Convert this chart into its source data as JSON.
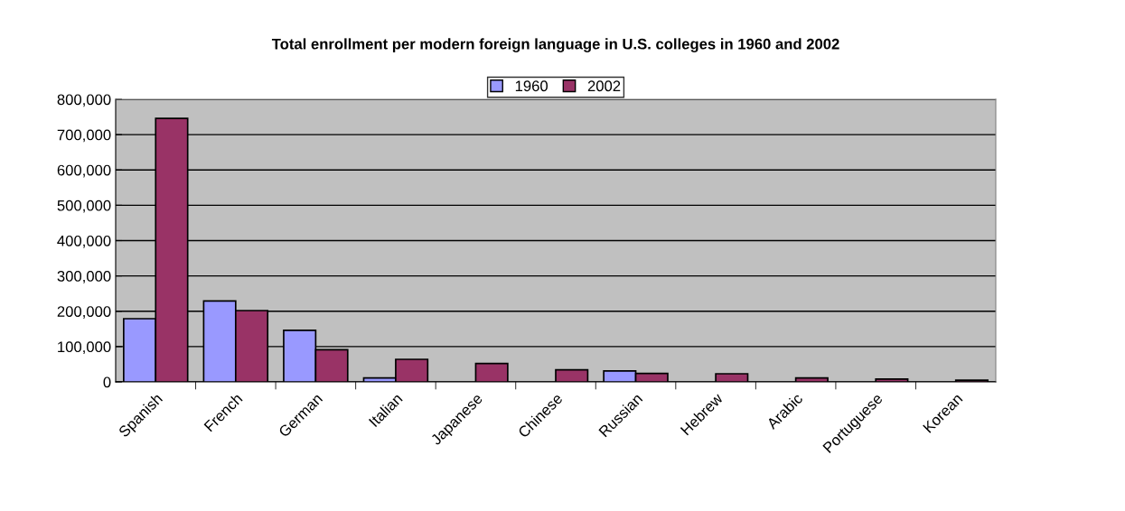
{
  "chart_data": {
    "type": "bar",
    "title": "Total enrollment per modern foreign language in U.S. colleges in 1960 and 2002",
    "categories": [
      "Spanish",
      "French",
      "German",
      "Italian",
      "Japanese",
      "Chinese",
      "Russian",
      "Hebrew",
      "Arabic",
      "Portuguese",
      "Korean"
    ],
    "series": [
      {
        "name": "1960",
        "color": "#9999ff",
        "values": [
          179000,
          229000,
          146000,
          11000,
          null,
          null,
          31000,
          null,
          null,
          null,
          null
        ]
      },
      {
        "name": "2002",
        "color": "#993366",
        "values": [
          746000,
          202000,
          91000,
          64000,
          52000,
          34000,
          24000,
          23000,
          11000,
          8000,
          5000
        ]
      }
    ],
    "ylim": [
      0,
      800000
    ],
    "yticks": [
      {
        "value": 0,
        "label": "0"
      },
      {
        "value": 100000,
        "label": "100,000"
      },
      {
        "value": 200000,
        "label": "200,000"
      },
      {
        "value": 300000,
        "label": "300,000"
      },
      {
        "value": 400000,
        "label": "400,000"
      },
      {
        "value": 500000,
        "label": "500,000"
      },
      {
        "value": 600000,
        "label": "600,000"
      },
      {
        "value": 700000,
        "label": "700,000"
      },
      {
        "value": 800000,
        "label": "800,000"
      }
    ],
    "grid": "y",
    "legend": "top"
  }
}
